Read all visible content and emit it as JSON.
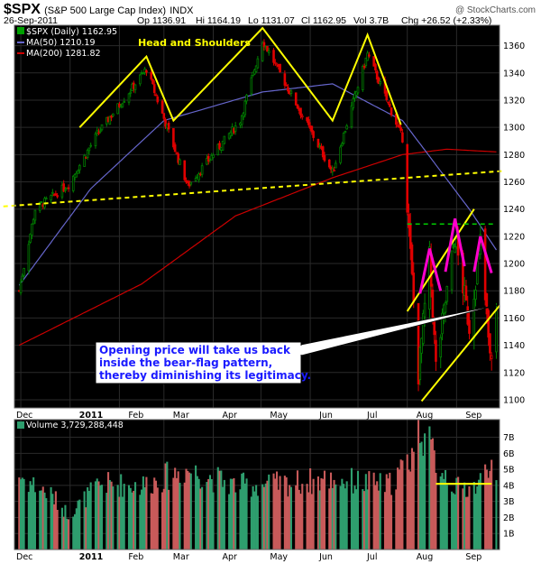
{
  "header": {
    "symbol": "$SPX",
    "name": "(S&P 500 Large Cap Index)",
    "exchange": "INDX",
    "watermark": "@ StockCharts.com",
    "date": "26-Sep-2011",
    "open": "Op 1136.91",
    "high": "Hi 1164.19",
    "low": "Lo 1131.07",
    "close": "Cl 1162.95",
    "volume": "Vol 3.7B",
    "change": "Chg +26.52 (+2.33%)"
  },
  "legend": {
    "price": "$SPX (Daily) 1162.95",
    "ma50": "MA(50) 1210.19",
    "ma200": "MA(200) 1281.82",
    "volume": "Volume 3,729,288,448"
  },
  "annotations": {
    "head_shoulders": "Head and Shoulders",
    "note_lines": [
      "Opening price will take us back",
      "inside the bear-flag pattern,",
      "thereby diminishing its legitimacy."
    ]
  },
  "colors": {
    "up": "#008000",
    "down": "#e00000",
    "ma50": "#6666cc",
    "ma200": "#cc0000",
    "pattern": "#ffff00",
    "flag_peaks": "#ff00cc",
    "resistance": "#00cc00",
    "plot_bg": "#000000",
    "volume_up": "#2e9e6e",
    "volume_down": "#c85a5a"
  },
  "chart_data": {
    "type": "candlestick",
    "y_ticks": [
      1100,
      1120,
      1140,
      1160,
      1180,
      1200,
      1220,
      1240,
      1260,
      1280,
      1300,
      1320,
      1340,
      1360
    ],
    "ylim": [
      1094,
      1375
    ],
    "x_months": [
      "Dec",
      "2011",
      "Feb",
      "Mar",
      "Apr",
      "May",
      "Jun",
      "Jul",
      "Aug",
      "Sep"
    ],
    "volume_ticks": [
      "1B",
      "2B",
      "3B",
      "4B",
      "5B",
      "6B",
      "7B"
    ],
    "volume_ylim": [
      0,
      8.1
    ],
    "close_anchors": [
      {
        "date": "2010-11-30",
        "value": 1180
      },
      {
        "date": "2010-12-10",
        "value": 1240
      },
      {
        "date": "2010-12-31",
        "value": 1258
      },
      {
        "date": "2011-01-18",
        "value": 1295
      },
      {
        "date": "2011-02-18",
        "value": 1343
      },
      {
        "date": "2011-03-16",
        "value": 1257
      },
      {
        "date": "2011-04-18",
        "value": 1305
      },
      {
        "date": "2011-05-02",
        "value": 1364
      },
      {
        "date": "2011-06-15",
        "value": 1267
      },
      {
        "date": "2011-07-07",
        "value": 1354
      },
      {
        "date": "2011-07-29",
        "value": 1292
      },
      {
        "date": "2011-08-08",
        "value": 1119
      },
      {
        "date": "2011-08-15",
        "value": 1204
      },
      {
        "date": "2011-08-19",
        "value": 1124
      },
      {
        "date": "2011-08-31",
        "value": 1219
      },
      {
        "date": "2011-09-09",
        "value": 1154
      },
      {
        "date": "2011-09-16",
        "value": 1216
      },
      {
        "date": "2011-09-22",
        "value": 1129
      },
      {
        "date": "2011-09-26",
        "value": 1163
      }
    ],
    "ma50_anchors": [
      {
        "date": "2010-11-30",
        "value": 1184
      },
      {
        "date": "2011-01-14",
        "value": 1255
      },
      {
        "date": "2011-03-01",
        "value": 1305
      },
      {
        "date": "2011-05-02",
        "value": 1326
      },
      {
        "date": "2011-06-15",
        "value": 1332
      },
      {
        "date": "2011-07-29",
        "value": 1305
      },
      {
        "date": "2011-09-09",
        "value": 1240
      },
      {
        "date": "2011-09-26",
        "value": 1210
      }
    ],
    "ma200_anchors": [
      {
        "date": "2010-11-30",
        "value": 1140
      },
      {
        "date": "2011-02-15",
        "value": 1185
      },
      {
        "date": "2011-04-15",
        "value": 1235
      },
      {
        "date": "2011-06-15",
        "value": 1263
      },
      {
        "date": "2011-07-29",
        "value": 1280
      },
      {
        "date": "2011-08-26",
        "value": 1284
      },
      {
        "date": "2011-09-26",
        "value": 1282
      }
    ],
    "volume_anchors": [
      {
        "date": "2010-11-30",
        "value": 4.6
      },
      {
        "date": "2010-12-20",
        "value": 3.4
      },
      {
        "date": "2010-12-31",
        "value": 2.2
      },
      {
        "date": "2011-01-20",
        "value": 4.1
      },
      {
        "date": "2011-02-15",
        "value": 4.0
      },
      {
        "date": "2011-03-15",
        "value": 5.0
      },
      {
        "date": "2011-04-15",
        "value": 4.0
      },
      {
        "date": "2011-05-15",
        "value": 4.1
      },
      {
        "date": "2011-06-15",
        "value": 4.4
      },
      {
        "date": "2011-07-20",
        "value": 4.0
      },
      {
        "date": "2011-08-02",
        "value": 5.5
      },
      {
        "date": "2011-08-09",
        "value": 7.7
      },
      {
        "date": "2011-08-19",
        "value": 5.6
      },
      {
        "date": "2011-09-01",
        "value": 3.8
      },
      {
        "date": "2011-09-15",
        "value": 4.0
      },
      {
        "date": "2011-09-22",
        "value": 5.8
      },
      {
        "date": "2011-09-26",
        "value": 3.7
      }
    ],
    "overlays": [
      {
        "kind": "head-and-shoulders",
        "points": [
          [
            "2011-01-07",
            1300
          ],
          [
            "2011-02-18",
            1352
          ],
          [
            "2011-03-07",
            1305
          ],
          [
            "2011-05-02",
            1373
          ],
          [
            "2011-06-15",
            1305
          ],
          [
            "2011-07-07",
            1368
          ],
          [
            "2011-07-28",
            1302
          ]
        ]
      },
      {
        "kind": "neckline",
        "points": [
          [
            "2010-11-20",
            1242
          ],
          [
            "2011-09-30",
            1268
          ]
        ]
      },
      {
        "kind": "flag-upper",
        "points": [
          [
            "2011-08-01",
            1165
          ],
          [
            "2011-09-12",
            1240
          ]
        ]
      },
      {
        "kind": "flag-lower",
        "points": [
          [
            "2011-08-10",
            1099
          ],
          [
            "2011-09-28",
            1169
          ]
        ]
      },
      {
        "kind": "flag-resistance",
        "points": [
          [
            "2011-08-01",
            1229
          ],
          [
            "2011-09-26",
            1229
          ]
        ]
      },
      {
        "kind": "flag-peak-1",
        "points": [
          [
            "2011-08-09",
            1178
          ],
          [
            "2011-08-15",
            1211
          ],
          [
            "2011-08-22",
            1180
          ]
        ]
      },
      {
        "kind": "flag-peak-2",
        "points": [
          [
            "2011-08-25",
            1194
          ],
          [
            "2011-08-31",
            1233
          ],
          [
            "2011-09-06",
            1198
          ]
        ]
      },
      {
        "kind": "flag-peak-3",
        "points": [
          [
            "2011-09-12",
            1194
          ],
          [
            "2011-09-16",
            1220
          ],
          [
            "2011-09-23",
            1193
          ]
        ]
      },
      {
        "kind": "volume-level",
        "points": [
          [
            "2011-08-19",
            4.1
          ],
          [
            "2011-09-23",
            4.1
          ]
        ]
      }
    ]
  }
}
